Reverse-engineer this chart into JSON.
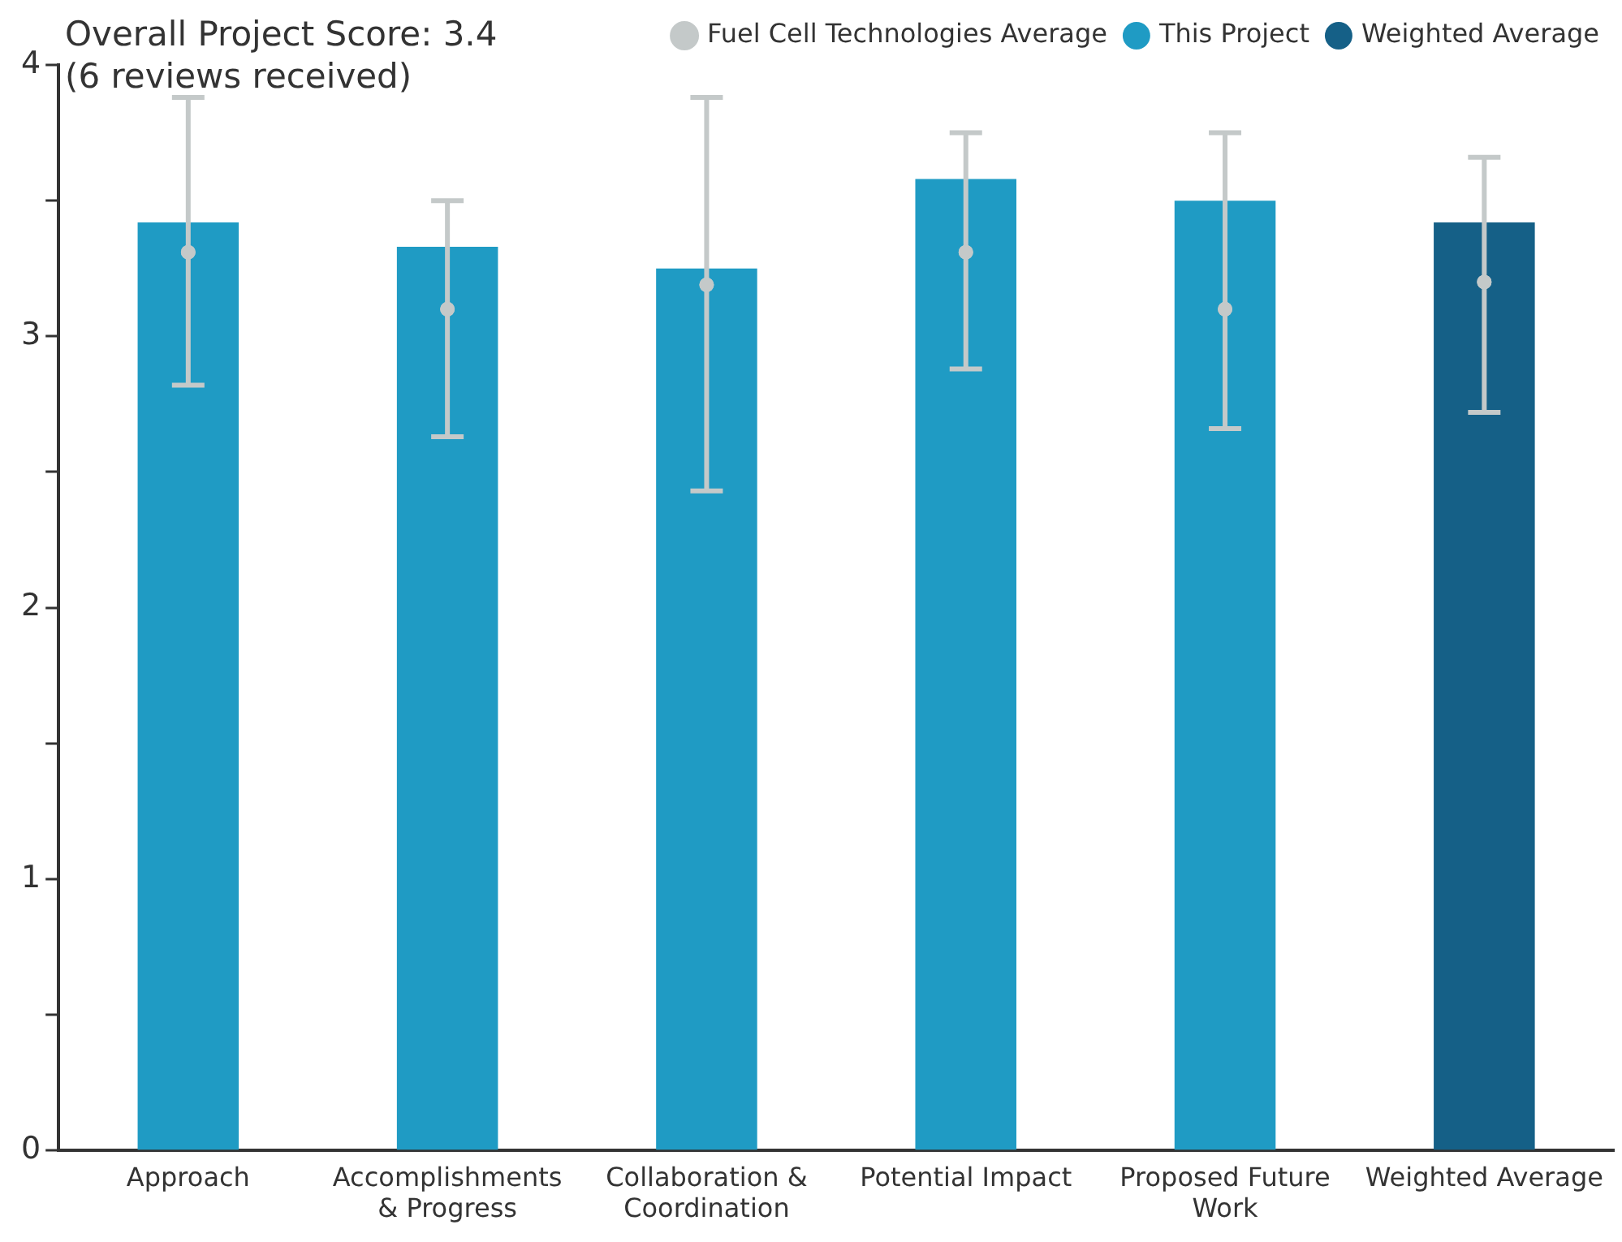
{
  "chart_data": {
    "type": "bar",
    "title": "Overall Project Score: 3.4",
    "subtitle": "(6 reviews received)",
    "categories": [
      "Approach",
      "Accomplishments & Progress",
      "Collaboration & Coordination",
      "Potential Impact",
      "Proposed Future Work",
      "Weighted Average"
    ],
    "stacked": true,
    "series": [
      {
        "name": "This Project",
        "color": "#1f9bc4",
        "values": [
          3.42,
          3.33,
          3.25,
          3.58,
          3.5,
          null
        ]
      },
      {
        "name": "Weighted Average",
        "color": "#156087",
        "values": [
          null,
          null,
          null,
          null,
          null,
          3.42
        ]
      },
      {
        "name": "Fuel Cell Technologies Average",
        "type": "scatter",
        "color": "#c4c9c9",
        "values": [
          3.31,
          3.1,
          3.19,
          3.31,
          3.1,
          3.2
        ],
        "errors": [
          [
            2.82,
            3.88
          ],
          [
            2.63,
            3.5
          ],
          [
            2.43,
            3.88
          ],
          [
            2.88,
            3.75
          ],
          [
            2.66,
            3.75
          ],
          [
            2.72,
            3.66
          ]
        ]
      }
    ],
    "ylim": [
      0,
      4
    ],
    "yticks": [
      0,
      {
        "value": 0.5,
        "label": null
      },
      1,
      {
        "value": 1.5,
        "label": null
      },
      2,
      {
        "value": 2.5,
        "label": null
      },
      3,
      {
        "value": 3.5,
        "label": null
      },
      4
    ],
    "grid": false,
    "legend": "top right",
    "marker": "circle"
  }
}
